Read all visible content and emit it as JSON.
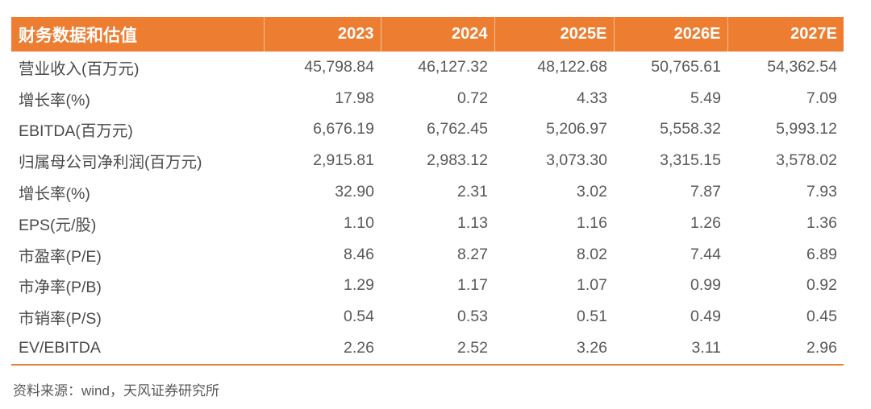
{
  "chart_data": {
    "type": "table",
    "title": "财务数据和估值",
    "columns": [
      "2023",
      "2024",
      "2025E",
      "2026E",
      "2027E"
    ],
    "rows": [
      {
        "label": "营业收入(百万元)",
        "values": [
          "45,798.84",
          "46,127.32",
          "48,122.68",
          "50,765.61",
          "54,362.54"
        ]
      },
      {
        "label": "增长率(%)",
        "values": [
          "17.98",
          "0.72",
          "4.33",
          "5.49",
          "7.09"
        ]
      },
      {
        "label": "EBITDA(百万元)",
        "values": [
          "6,676.19",
          "6,762.45",
          "5,206.97",
          "5,558.32",
          "5,993.12"
        ]
      },
      {
        "label": "归属母公司净利润(百万元)",
        "values": [
          "2,915.81",
          "2,983.12",
          "3,073.30",
          "3,315.15",
          "3,578.02"
        ]
      },
      {
        "label": "增长率(%)",
        "values": [
          "32.90",
          "2.31",
          "3.02",
          "7.87",
          "7.93"
        ]
      },
      {
        "label": "EPS(元/股)",
        "values": [
          "1.10",
          "1.13",
          "1.16",
          "1.26",
          "1.36"
        ]
      },
      {
        "label": "市盈率(P/E)",
        "values": [
          "8.46",
          "8.27",
          "8.02",
          "7.44",
          "6.89"
        ]
      },
      {
        "label": "市净率(P/B)",
        "values": [
          "1.29",
          "1.17",
          "1.07",
          "0.99",
          "0.92"
        ]
      },
      {
        "label": "市销率(P/S)",
        "values": [
          "0.54",
          "0.53",
          "0.51",
          "0.49",
          "0.45"
        ]
      },
      {
        "label": "EV/EBITDA",
        "values": [
          "2.26",
          "2.52",
          "3.26",
          "3.11",
          "2.96"
        ]
      }
    ],
    "source": "资料来源：wind，天风证券研究所",
    "layout_hints": {
      "grid": "off",
      "header_dividers": "on",
      "bottom_rule": "on"
    }
  },
  "colors": {
    "header_bg": "#ED7D31",
    "header_text": "#FFFFFF",
    "label_text": "#4A4A4A",
    "value_text": "#595959",
    "bottom_border": "#ED7D31"
  }
}
